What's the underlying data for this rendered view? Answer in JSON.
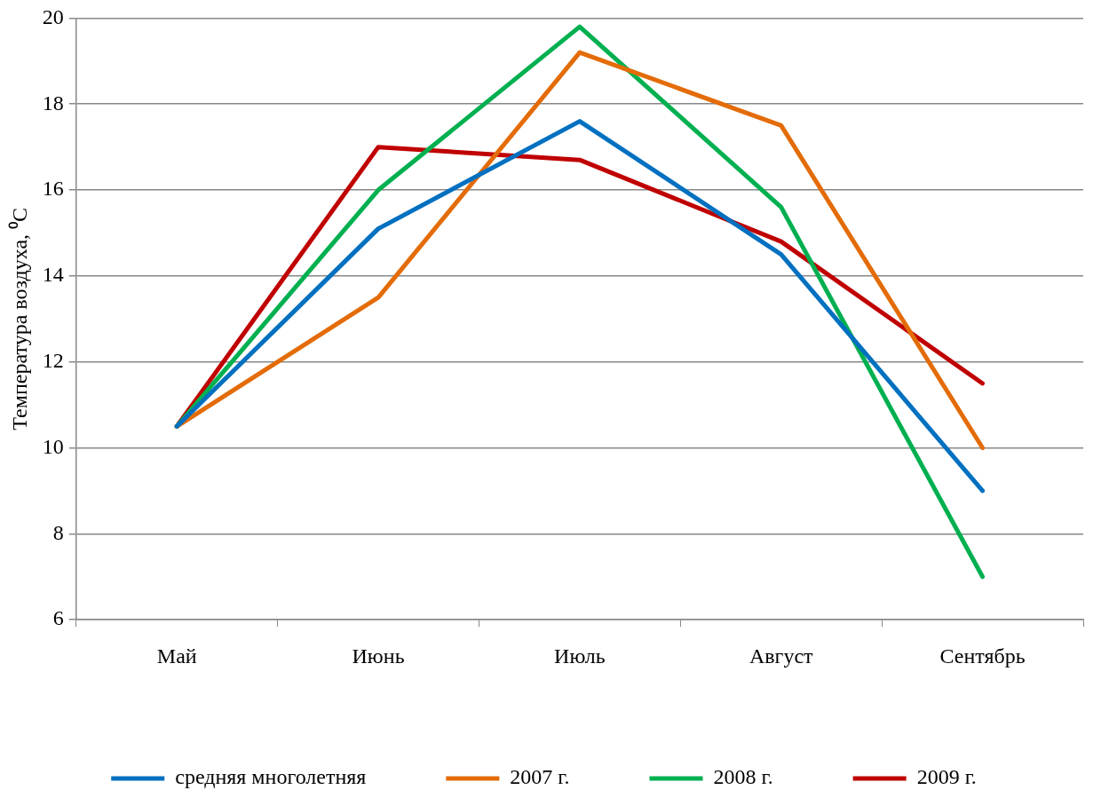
{
  "chart_data": {
    "type": "line",
    "ylabel": "Температура воздуха, ⁰C",
    "categories": [
      "Май",
      "Июнь",
      "Июль",
      "Август",
      "Сентябрь"
    ],
    "series": [
      {
        "name": "средняя многолетняя",
        "color": "#0070c0",
        "values": [
          10.5,
          15.1,
          17.6,
          14.5,
          9.0
        ]
      },
      {
        "name": "2007 г.",
        "color": "#e36c09",
        "values": [
          10.5,
          13.5,
          19.2,
          17.5,
          10.0
        ]
      },
      {
        "name": "2008 г.",
        "color": "#00b050",
        "values": [
          10.5,
          16.0,
          19.8,
          15.6,
          7.0
        ]
      },
      {
        "name": "2009 г.",
        "color": "#c00000",
        "values": [
          10.5,
          17.0,
          16.7,
          14.8,
          11.5
        ]
      }
    ],
    "ylim": [
      6,
      20
    ],
    "yticks": [
      6,
      8,
      10,
      12,
      14,
      16,
      18,
      20
    ],
    "grid": "y",
    "legend": "bottom",
    "marker": "none",
    "line_style": "solid"
  }
}
